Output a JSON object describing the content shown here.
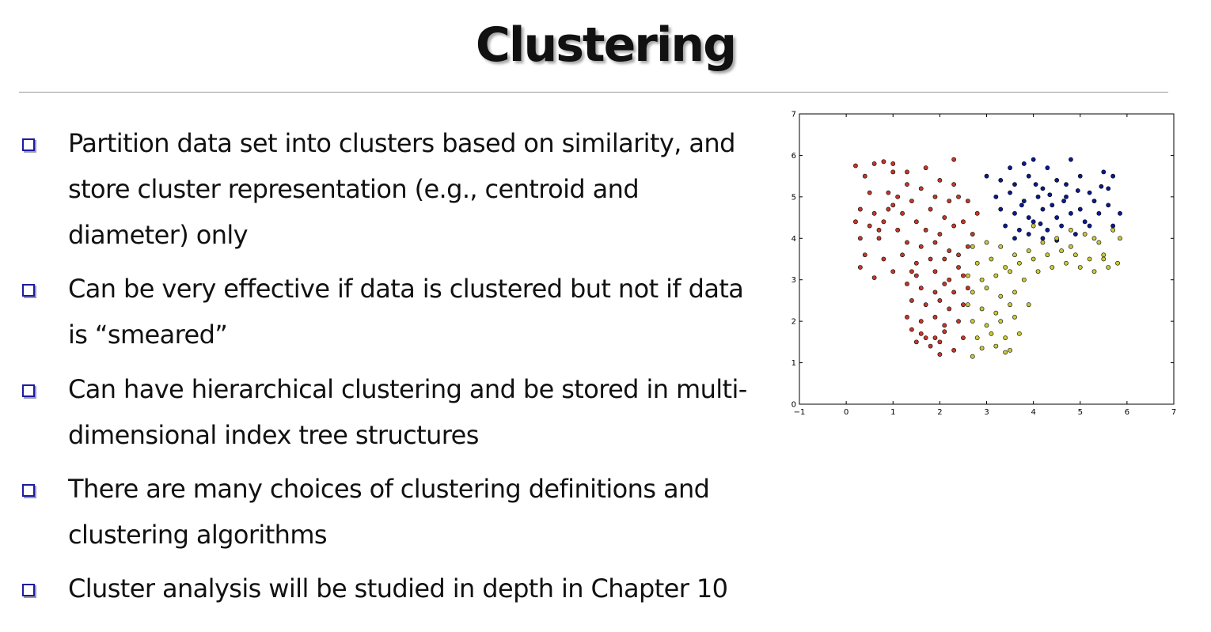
{
  "slide": {
    "title": "Clustering",
    "bullets": [
      {
        "lines": [
          "Partition data set into clusters based on similarity, and",
          "store cluster representation (e.g., centroid and",
          "diameter) only"
        ]
      },
      {
        "lines": [
          "Can be very effective if data is clustered but not if data",
          "is “smeared”"
        ]
      },
      {
        "lines": [
          "Can have hierarchical clustering and be stored in multi-",
          "dimensional index tree structures"
        ]
      },
      {
        "lines": [
          "There are many choices of clustering definitions and",
          "clustering algorithms"
        ]
      },
      {
        "lines": [
          "Cluster analysis will be studied in depth in Chapter 10"
        ]
      }
    ]
  },
  "colors": {
    "bullet_box": "#1c1ca0",
    "cluster_red": "#c0392b",
    "cluster_blue": "#0a1a8f",
    "cluster_yellow": "#c8c83a"
  },
  "chart_data": {
    "type": "scatter",
    "title": "",
    "xlabel": "",
    "ylabel": "",
    "xlim": [
      -1,
      7
    ],
    "ylim": [
      0,
      7
    ],
    "xticks": [
      "−1",
      "0",
      "1",
      "2",
      "3",
      "4",
      "5",
      "6",
      "7"
    ],
    "yticks": [
      "0",
      "1",
      "2",
      "3",
      "4",
      "5",
      "6",
      "7"
    ],
    "grid": false,
    "legend": "none",
    "series": [
      {
        "color": "#c0392b",
        "points": [
          [
            0.2,
            5.75
          ],
          [
            0.6,
            5.8
          ],
          [
            0.8,
            5.85
          ],
          [
            1.0,
            5.8
          ],
          [
            1.3,
            5.6
          ],
          [
            1.7,
            5.7
          ],
          [
            2.3,
            5.9
          ],
          [
            2.3,
            5.3
          ],
          [
            1.0,
            5.6
          ],
          [
            0.4,
            5.5
          ],
          [
            0.5,
            5.1
          ],
          [
            0.9,
            5.1
          ],
          [
            1.3,
            5.3
          ],
          [
            1.6,
            5.2
          ],
          [
            1.9,
            5.0
          ],
          [
            2.2,
            4.9
          ],
          [
            2.6,
            4.9
          ],
          [
            0.3,
            4.7
          ],
          [
            0.6,
            4.6
          ],
          [
            1.0,
            4.8
          ],
          [
            1.2,
            4.6
          ],
          [
            1.4,
            4.9
          ],
          [
            1.8,
            4.7
          ],
          [
            2.1,
            4.5
          ],
          [
            2.5,
            4.4
          ],
          [
            2.8,
            4.6
          ],
          [
            0.2,
            4.4
          ],
          [
            0.5,
            4.3
          ],
          [
            0.8,
            4.4
          ],
          [
            1.1,
            4.2
          ],
          [
            1.5,
            4.4
          ],
          [
            1.7,
            4.2
          ],
          [
            2.0,
            4.1
          ],
          [
            2.3,
            4.3
          ],
          [
            2.7,
            4.1
          ],
          [
            0.3,
            4.0
          ],
          [
            0.7,
            4.0
          ],
          [
            1.3,
            3.9
          ],
          [
            1.6,
            3.8
          ],
          [
            1.9,
            3.9
          ],
          [
            2.2,
            3.7
          ],
          [
            2.6,
            3.8
          ],
          [
            0.4,
            3.6
          ],
          [
            0.8,
            3.5
          ],
          [
            1.2,
            3.6
          ],
          [
            1.5,
            3.4
          ],
          [
            1.8,
            3.5
          ],
          [
            2.1,
            3.5
          ],
          [
            2.4,
            3.3
          ],
          [
            0.3,
            3.3
          ],
          [
            0.6,
            3.05
          ],
          [
            1.0,
            3.2
          ],
          [
            1.5,
            3.1
          ],
          [
            1.9,
            3.2
          ],
          [
            2.2,
            3.0
          ],
          [
            2.5,
            3.1
          ],
          [
            1.3,
            2.9
          ],
          [
            1.6,
            2.8
          ],
          [
            1.9,
            2.7
          ],
          [
            2.1,
            2.9
          ],
          [
            2.3,
            2.7
          ],
          [
            2.6,
            2.8
          ],
          [
            1.4,
            2.5
          ],
          [
            1.7,
            2.4
          ],
          [
            2.0,
            2.5
          ],
          [
            2.2,
            2.3
          ],
          [
            2.5,
            2.4
          ],
          [
            1.3,
            2.1
          ],
          [
            1.6,
            2.0
          ],
          [
            1.9,
            2.1
          ],
          [
            2.1,
            1.9
          ],
          [
            2.4,
            2.0
          ],
          [
            1.4,
            1.8
          ],
          [
            1.6,
            1.7
          ],
          [
            1.9,
            1.6
          ],
          [
            2.1,
            1.75
          ],
          [
            2.5,
            1.6
          ],
          [
            1.5,
            1.5
          ],
          [
            1.8,
            1.4
          ],
          [
            2.0,
            1.5
          ],
          [
            2.3,
            1.3
          ],
          [
            2.0,
            1.2
          ],
          [
            1.7,
            1.6
          ],
          [
            0.9,
            4.7
          ],
          [
            1.1,
            5.0
          ],
          [
            2.0,
            5.4
          ],
          [
            2.4,
            5.0
          ],
          [
            0.7,
            4.2
          ],
          [
            2.4,
            3.6
          ],
          [
            1.4,
            3.2
          ]
        ]
      },
      {
        "color": "#0a1a8f",
        "points": [
          [
            3.0,
            5.5
          ],
          [
            3.5,
            5.7
          ],
          [
            3.8,
            5.8
          ],
          [
            4.0,
            5.9
          ],
          [
            4.3,
            5.7
          ],
          [
            4.8,
            5.9
          ],
          [
            5.5,
            5.6
          ],
          [
            5.7,
            5.5
          ],
          [
            3.3,
            5.4
          ],
          [
            3.6,
            5.3
          ],
          [
            3.9,
            5.5
          ],
          [
            4.2,
            5.2
          ],
          [
            4.5,
            5.4
          ],
          [
            4.7,
            5.3
          ],
          [
            5.0,
            5.5
          ],
          [
            5.2,
            5.1
          ],
          [
            5.6,
            5.2
          ],
          [
            3.2,
            5.0
          ],
          [
            3.5,
            5.1
          ],
          [
            3.8,
            4.9
          ],
          [
            4.1,
            5.0
          ],
          [
            4.4,
            4.8
          ],
          [
            4.7,
            5.0
          ],
          [
            5.0,
            4.7
          ],
          [
            5.3,
            4.9
          ],
          [
            5.6,
            4.8
          ],
          [
            5.85,
            4.6
          ],
          [
            3.3,
            4.7
          ],
          [
            3.6,
            4.6
          ],
          [
            3.9,
            4.5
          ],
          [
            4.2,
            4.7
          ],
          [
            4.5,
            4.5
          ],
          [
            4.8,
            4.6
          ],
          [
            5.1,
            4.4
          ],
          [
            5.4,
            4.6
          ],
          [
            5.7,
            4.3
          ],
          [
            3.4,
            4.3
          ],
          [
            3.7,
            4.2
          ],
          [
            4.0,
            4.4
          ],
          [
            4.3,
            4.2
          ],
          [
            4.6,
            4.3
          ],
          [
            4.9,
            4.1
          ],
          [
            5.2,
            4.3
          ],
          [
            3.6,
            4.0
          ],
          [
            3.9,
            4.1
          ],
          [
            4.2,
            4.0
          ],
          [
            4.5,
            3.95
          ],
          [
            4.05,
            5.3
          ],
          [
            4.35,
            5.05
          ],
          [
            4.65,
            4.9
          ],
          [
            4.95,
            5.15
          ],
          [
            3.75,
            4.8
          ],
          [
            5.45,
            5.25
          ],
          [
            4.15,
            4.35
          ]
        ]
      },
      {
        "color": "#c8c83a",
        "points": [
          [
            2.7,
            3.8
          ],
          [
            3.0,
            3.9
          ],
          [
            3.3,
            3.8
          ],
          [
            3.6,
            3.6
          ],
          [
            3.9,
            3.7
          ],
          [
            4.2,
            3.9
          ],
          [
            4.5,
            4.0
          ],
          [
            4.8,
            3.8
          ],
          [
            5.1,
            4.1
          ],
          [
            5.4,
            3.9
          ],
          [
            5.7,
            4.2
          ],
          [
            5.85,
            4.0
          ],
          [
            2.8,
            3.4
          ],
          [
            3.1,
            3.5
          ],
          [
            3.4,
            3.3
          ],
          [
            3.7,
            3.4
          ],
          [
            4.0,
            3.5
          ],
          [
            4.3,
            3.6
          ],
          [
            4.6,
            3.7
          ],
          [
            4.9,
            3.6
          ],
          [
            5.2,
            3.5
          ],
          [
            5.5,
            3.6
          ],
          [
            5.8,
            3.4
          ],
          [
            2.6,
            3.1
          ],
          [
            2.9,
            3.0
          ],
          [
            3.2,
            3.1
          ],
          [
            3.5,
            3.2
          ],
          [
            4.4,
            3.3
          ],
          [
            4.7,
            3.4
          ],
          [
            5.0,
            3.3
          ],
          [
            5.3,
            3.2
          ],
          [
            5.6,
            3.3
          ],
          [
            2.7,
            2.7
          ],
          [
            3.0,
            2.8
          ],
          [
            3.3,
            2.6
          ],
          [
            3.6,
            2.7
          ],
          [
            3.9,
            2.4
          ],
          [
            2.6,
            2.4
          ],
          [
            2.9,
            2.3
          ],
          [
            3.2,
            2.2
          ],
          [
            3.5,
            2.4
          ],
          [
            2.7,
            2.0
          ],
          [
            3.0,
            1.9
          ],
          [
            3.3,
            2.0
          ],
          [
            3.6,
            2.1
          ],
          [
            2.8,
            1.6
          ],
          [
            3.1,
            1.7
          ],
          [
            3.4,
            1.6
          ],
          [
            3.7,
            1.7
          ],
          [
            2.9,
            1.35
          ],
          [
            3.2,
            1.4
          ],
          [
            3.5,
            1.3
          ],
          [
            2.7,
            1.15
          ],
          [
            3.4,
            1.25
          ],
          [
            4.0,
            4.3
          ],
          [
            4.8,
            4.2
          ],
          [
            5.3,
            4.0
          ],
          [
            5.5,
            3.5
          ],
          [
            4.1,
            3.2
          ],
          [
            3.8,
            3.0
          ]
        ]
      }
    ]
  }
}
